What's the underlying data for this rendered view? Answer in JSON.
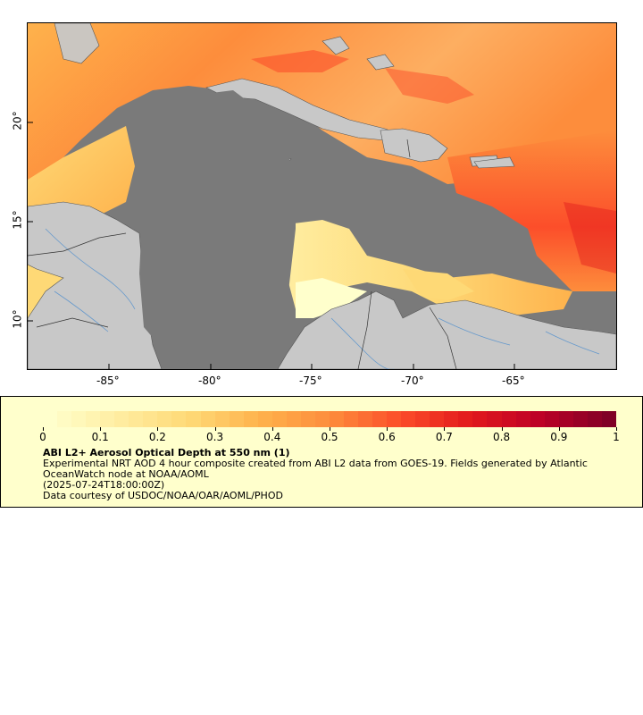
{
  "map": {
    "lat_labels": [
      "20°",
      "15°",
      "10°"
    ],
    "lon_labels": [
      "-85°",
      "-80°",
      "-75°",
      "-70°",
      "-65°"
    ],
    "colors": {
      "ocean_masked": "#7a7a7a",
      "land": "#c8c8c8",
      "borders": "#333333",
      "rivers": "#6699cc"
    }
  },
  "legend": {
    "colormap": [
      "#ffffcc",
      "#ffeda0",
      "#fed976",
      "#feb24c",
      "#fd8d3c",
      "#fc4e2a",
      "#e31a1c",
      "#bd0026",
      "#800026"
    ],
    "ticks": [
      "0",
      "0.1",
      "0.2",
      "0.3",
      "0.4",
      "0.5",
      "0.6",
      "0.7",
      "0.8",
      "0.9",
      "1"
    ],
    "title": "ABI L2+ Aerosol Optical Depth at 550 nm (1)",
    "description": "Experimental NRT AOD 4 hour composite created from ABI L2 data from GOES-19. Fields generated by Atlantic OceanWatch node at NOAA/AOML",
    "time": "(2025-07-24T18:00:00Z)",
    "credit": "Data courtesy of USDOC/NOAA/OAR/AOML/PHOD"
  }
}
